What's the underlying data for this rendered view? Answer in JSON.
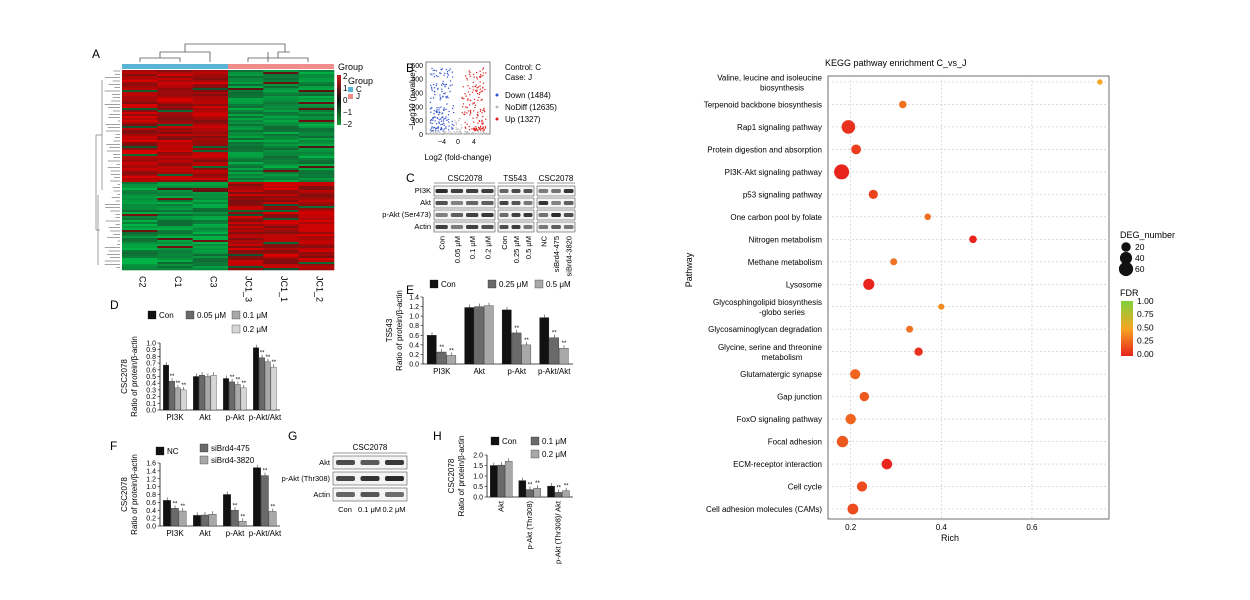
{
  "panel_labels": {
    "a": "A",
    "b": "B",
    "c": "C",
    "d": "D",
    "e": "E",
    "f": "F",
    "g": "G",
    "h": "H"
  },
  "colors": {
    "con": "#111111",
    "dose1": "#6a6a6a",
    "dose2": "#a8a8a8",
    "dose3": "#d6d6d6",
    "heat_high": "#c81e1e",
    "heat_low": "#1e9e3a",
    "group_c": "#5ab4d6",
    "group_j": "#f08c8c",
    "volcano_down": "#3355cc",
    "volcano_up": "#dd2222",
    "volcano_nodiff": "#bbbbbb"
  },
  "heatmap": {
    "columns": [
      "C2",
      "C1",
      "C3",
      "JC1_3",
      "JC1_1",
      "JC1_2"
    ],
    "scale_title": "Group",
    "scale_ticks": [
      "2",
      "1",
      "0",
      "−1",
      "−2"
    ],
    "group_title": "Group",
    "groups": [
      "C",
      "J"
    ]
  },
  "volcano": {
    "ylabel": "−Log10 (p-value)",
    "xlabel": "Log2 (fold-change)",
    "xticks": [
      "−4",
      "0",
      "4"
    ],
    "yticks": [
      "0",
      "100",
      "200",
      "300",
      "400",
      "500"
    ],
    "control": "Control: C",
    "case": "Case: J",
    "legend": [
      "Down (1484)",
      "NoDiff (12635)",
      "Up (1327)"
    ]
  },
  "blot_c": {
    "groups": [
      "CSC2078",
      "TS543",
      "CSC2078"
    ],
    "rows": [
      "PI3K",
      "Akt",
      "p-Akt (Ser473)",
      "Actin"
    ],
    "lanes": [
      "Con",
      "0.05 μM",
      "0.1 μM",
      "0.2 μM",
      "Con",
      "0.25 μM",
      "0.5 μM",
      "NC",
      "siBrd4-475",
      "siBrd4-3820"
    ]
  },
  "blot_g": {
    "title": "CSC2078",
    "rows": [
      "Akt",
      "p-Akt (Thr308)",
      "Actin"
    ],
    "lanes": [
      "Con",
      "0.1 μM",
      "0.2 μM"
    ]
  },
  "kegg": {
    "title": "KEGG pathway enrichment C_vs_J",
    "xlabel": "Rich",
    "ylabel": "Pathway",
    "size_title": "DEG_number",
    "size_labels": [
      "20",
      "40",
      "60"
    ],
    "color_title": "FDR",
    "color_ticks": [
      "1.00",
      "0.75",
      "0.50",
      "0.25",
      "0.00"
    ]
  },
  "chart_data": [
    {
      "type": "bar",
      "panel": "D",
      "ylabel_cell": "CSC2078",
      "ylabel": "Ratio of protein/β-actin",
      "categories": [
        "PI3K",
        "Akt",
        "p-Akt",
        "p-Akt/Akt"
      ],
      "series": [
        {
          "name": "Con",
          "values": [
            0.67,
            0.5,
            0.47,
            0.93
          ]
        },
        {
          "name": "0.05 μM",
          "values": [
            0.43,
            0.52,
            0.42,
            0.78
          ]
        },
        {
          "name": "0.1 μM",
          "values": [
            0.33,
            0.5,
            0.38,
            0.72
          ]
        },
        {
          "name": "0.2 μM",
          "values": [
            0.3,
            0.52,
            0.33,
            0.64
          ]
        }
      ],
      "ylim": [
        0,
        1.0
      ],
      "yticks": [
        "0.0",
        "0.1",
        "0.2",
        "0.3",
        "0.4",
        "0.5",
        "0.6",
        "0.7",
        "0.8",
        "0.9",
        "1.0"
      ]
    },
    {
      "type": "bar",
      "panel": "E",
      "ylabel_cell": "TS543",
      "ylabel": "Ratio of protein/β-actin",
      "categories": [
        "PI3K",
        "Akt",
        "p-Akt",
        "p-Akt/Akt"
      ],
      "series": [
        {
          "name": "Con",
          "values": [
            0.6,
            1.18,
            1.13,
            0.97
          ]
        },
        {
          "name": "0.25 μM",
          "values": [
            0.25,
            1.2,
            0.65,
            0.55
          ]
        },
        {
          "name": "0.5 μM",
          "values": [
            0.18,
            1.22,
            0.4,
            0.33
          ]
        }
      ],
      "ylim": [
        0,
        1.4
      ],
      "yticks": [
        "0.0",
        "0.2",
        "0.4",
        "0.6",
        "0.8",
        "1.0",
        "1.2",
        "1.4"
      ]
    },
    {
      "type": "bar",
      "panel": "F",
      "ylabel_cell": "CSC2078",
      "ylabel": "Ratio of protein/β-actin",
      "categories": [
        "PI3K",
        "Akt",
        "p-Akt",
        "p-Akt/Akt"
      ],
      "series": [
        {
          "name": "NC",
          "values": [
            0.65,
            0.27,
            0.8,
            1.48
          ]
        },
        {
          "name": "siBrd4-475",
          "values": [
            0.45,
            0.28,
            0.4,
            1.28
          ]
        },
        {
          "name": "siBrd4-3820",
          "values": [
            0.38,
            0.3,
            0.12,
            0.37
          ]
        }
      ],
      "ylim": [
        0,
        1.6
      ],
      "yticks": [
        "0.0",
        "0.2",
        "0.4",
        "0.6",
        "0.8",
        "1.0",
        "1.2",
        "1.4",
        "1.6"
      ]
    },
    {
      "type": "bar",
      "panel": "H",
      "ylabel_cell": "CSC2078",
      "ylabel": "Ratio of protein/β-actin",
      "categories": [
        "Akt",
        "p-Akt (Thr308)",
        "p-Akt (Thr308)/ Akt"
      ],
      "series": [
        {
          "name": "Con",
          "values": [
            1.5,
            0.78,
            0.52
          ]
        },
        {
          "name": "0.1 μM",
          "values": [
            1.52,
            0.35,
            0.22
          ]
        },
        {
          "name": "0.2 μM",
          "values": [
            1.7,
            0.42,
            0.3
          ]
        }
      ],
      "ylim": [
        0,
        2.0
      ],
      "yticks": [
        "0.0",
        "0.5",
        "1.0",
        "1.5",
        "2.0"
      ]
    },
    {
      "type": "scatter",
      "panel": "KEGG",
      "title": "KEGG pathway enrichment C_vs_J",
      "xlabel": "Rich",
      "ylabel": "Pathway",
      "xlim": [
        0.15,
        0.77
      ],
      "xticks": [
        "0.2",
        "0.4",
        "0.6"
      ],
      "categories": [
        "Valine, leucine and isoleucine biosynthesis",
        "Terpenoid backbone biosynthesis",
        "Rap1 signaling pathway",
        "Protein digestion and absorption",
        "PI3K-Akt signaling pathway",
        "p53 signaling pathway",
        "One carbon pool by folate",
        "Nitrogen metabolism",
        "Methane metabolism",
        "Lysosome",
        "Glycosphingolipid biosynthesis -globo series",
        "Glycosaminoglycan degradation",
        "Glycine, serine and threonine metabolism",
        "Glutamatergic synapse",
        "Gap junction",
        "FoxO signaling pathway",
        "Focal adhesion",
        "ECM-receptor interaction",
        "Cell cycle",
        "Cell adhesion molecules (CAMs)"
      ],
      "points": [
        {
          "rich": 0.75,
          "deg": 3,
          "fdr": 0.5
        },
        {
          "rich": 0.315,
          "deg": 10,
          "fdr": 0.3
        },
        {
          "rich": 0.195,
          "deg": 55,
          "fdr": 0.05
        },
        {
          "rich": 0.212,
          "deg": 22,
          "fdr": 0.1
        },
        {
          "rich": 0.18,
          "deg": 70,
          "fdr": 0.0
        },
        {
          "rich": 0.25,
          "deg": 18,
          "fdr": 0.12
        },
        {
          "rich": 0.37,
          "deg": 6,
          "fdr": 0.3
        },
        {
          "rich": 0.47,
          "deg": 10,
          "fdr": 0.0
        },
        {
          "rich": 0.295,
          "deg": 8,
          "fdr": 0.3
        },
        {
          "rich": 0.24,
          "deg": 32,
          "fdr": 0.0
        },
        {
          "rich": 0.4,
          "deg": 5,
          "fdr": 0.4
        },
        {
          "rich": 0.33,
          "deg": 8,
          "fdr": 0.3
        },
        {
          "rich": 0.35,
          "deg": 14,
          "fdr": 0.05
        },
        {
          "rich": 0.21,
          "deg": 25,
          "fdr": 0.25
        },
        {
          "rich": 0.23,
          "deg": 20,
          "fdr": 0.2
        },
        {
          "rich": 0.2,
          "deg": 26,
          "fdr": 0.25
        },
        {
          "rich": 0.182,
          "deg": 34,
          "fdr": 0.2
        },
        {
          "rich": 0.28,
          "deg": 28,
          "fdr": 0.0
        },
        {
          "rich": 0.225,
          "deg": 25,
          "fdr": 0.15
        },
        {
          "rich": 0.205,
          "deg": 30,
          "fdr": 0.15
        }
      ]
    }
  ]
}
